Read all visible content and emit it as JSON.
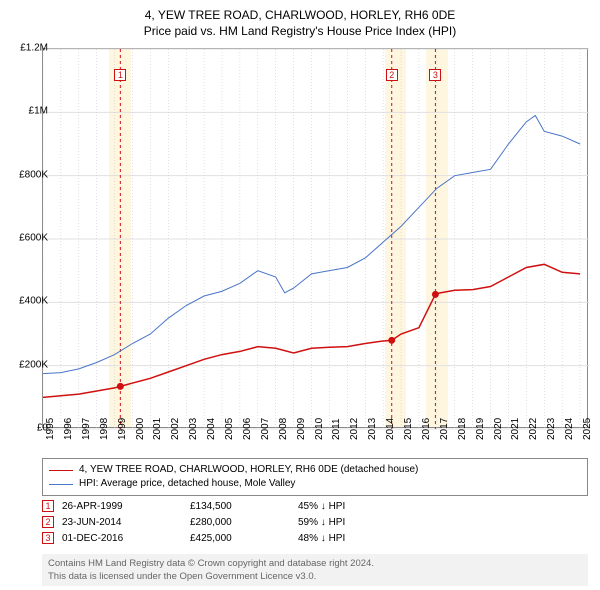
{
  "title": {
    "main": "4, YEW TREE ROAD, CHARLWOOD, HORLEY, RH6 0DE",
    "sub": "Price paid vs. HM Land Registry's House Price Index (HPI)"
  },
  "chart": {
    "type": "line",
    "background_color": "#ffffff",
    "grid_color": "#e0e0e0",
    "border_color": "#888888",
    "xlim": [
      1995,
      2025.5
    ],
    "ylim": [
      0,
      1200000
    ],
    "yticks": [
      {
        "v": 0,
        "label": "£0"
      },
      {
        "v": 200000,
        "label": "£200K"
      },
      {
        "v": 400000,
        "label": "£400K"
      },
      {
        "v": 600000,
        "label": "£600K"
      },
      {
        "v": 800000,
        "label": "£800K"
      },
      {
        "v": 1000000,
        "label": "£1M"
      },
      {
        "v": 1200000,
        "label": "£1.2M"
      }
    ],
    "xticks": [
      1995,
      1996,
      1997,
      1998,
      1999,
      2000,
      2001,
      2002,
      2003,
      2004,
      2005,
      2006,
      2007,
      2008,
      2009,
      2010,
      2011,
      2012,
      2013,
      2014,
      2015,
      2016,
      2017,
      2018,
      2019,
      2020,
      2021,
      2022,
      2023,
      2024,
      2025
    ],
    "shade_bands": [
      {
        "start": 1998.7,
        "end": 1999.9,
        "color": "#fff6e0"
      },
      {
        "start": 2014.1,
        "end": 2015.3,
        "color": "#fff6e0"
      },
      {
        "start": 2016.4,
        "end": 2017.6,
        "color": "#fff6e0"
      }
    ],
    "vlines": [
      {
        "x": 1999.32,
        "color": "#d01010"
      },
      {
        "x": 2014.48,
        "color": "#d01010"
      },
      {
        "x": 2016.92,
        "color": "#d01010"
      }
    ],
    "markers": [
      {
        "x": 1999.32,
        "label": "1"
      },
      {
        "x": 2014.48,
        "label": "2"
      },
      {
        "x": 2016.92,
        "label": "3"
      }
    ],
    "series": [
      {
        "name": "property",
        "label": "4, YEW TREE ROAD, CHARLWOOD, HORLEY, RH6 0DE (detached house)",
        "color": "#d01010",
        "line_width": 1.5,
        "data": [
          [
            1995,
            100000
          ],
          [
            1996,
            105000
          ],
          [
            1997,
            110000
          ],
          [
            1998,
            120000
          ],
          [
            1999,
            130000
          ],
          [
            1999.32,
            134500
          ],
          [
            2000,
            145000
          ],
          [
            2001,
            160000
          ],
          [
            2002,
            180000
          ],
          [
            2003,
            200000
          ],
          [
            2004,
            220000
          ],
          [
            2005,
            235000
          ],
          [
            2006,
            245000
          ],
          [
            2007,
            260000
          ],
          [
            2008,
            255000
          ],
          [
            2009,
            240000
          ],
          [
            2010,
            255000
          ],
          [
            2011,
            258000
          ],
          [
            2012,
            260000
          ],
          [
            2013,
            270000
          ],
          [
            2014,
            278000
          ],
          [
            2014.48,
            280000
          ],
          [
            2015,
            300000
          ],
          [
            2016,
            320000
          ],
          [
            2016.92,
            425000
          ],
          [
            2017,
            428000
          ],
          [
            2018,
            438000
          ],
          [
            2019,
            440000
          ],
          [
            2020,
            450000
          ],
          [
            2021,
            480000
          ],
          [
            2022,
            510000
          ],
          [
            2023,
            520000
          ],
          [
            2024,
            495000
          ],
          [
            2025,
            490000
          ]
        ],
        "sale_points": [
          {
            "x": 1999.32,
            "y": 134500
          },
          {
            "x": 2014.48,
            "y": 280000
          },
          {
            "x": 2016.92,
            "y": 425000
          }
        ]
      },
      {
        "name": "hpi",
        "label": "HPI: Average price, detached house, Mole Valley",
        "color": "#4a74c8",
        "line_width": 1,
        "data": [
          [
            1995,
            175000
          ],
          [
            1996,
            178000
          ],
          [
            1997,
            190000
          ],
          [
            1998,
            210000
          ],
          [
            1999,
            235000
          ],
          [
            2000,
            270000
          ],
          [
            2001,
            300000
          ],
          [
            2002,
            350000
          ],
          [
            2003,
            390000
          ],
          [
            2004,
            420000
          ],
          [
            2005,
            435000
          ],
          [
            2006,
            460000
          ],
          [
            2007,
            500000
          ],
          [
            2008,
            480000
          ],
          [
            2008.5,
            430000
          ],
          [
            2009,
            445000
          ],
          [
            2010,
            490000
          ],
          [
            2011,
            500000
          ],
          [
            2012,
            510000
          ],
          [
            2013,
            540000
          ],
          [
            2014,
            590000
          ],
          [
            2015,
            640000
          ],
          [
            2016,
            700000
          ],
          [
            2017,
            760000
          ],
          [
            2018,
            800000
          ],
          [
            2019,
            810000
          ],
          [
            2020,
            820000
          ],
          [
            2021,
            900000
          ],
          [
            2022,
            970000
          ],
          [
            2022.5,
            990000
          ],
          [
            2023,
            940000
          ],
          [
            2024,
            925000
          ],
          [
            2025,
            900000
          ]
        ]
      }
    ],
    "axis_label_fontsize": 10,
    "title_fontsize": 12
  },
  "annotations": [
    {
      "marker": "1",
      "date": "26-APR-1999",
      "price": "£134,500",
      "pct": "45% ↓ HPI"
    },
    {
      "marker": "2",
      "date": "23-JUN-2014",
      "price": "£280,000",
      "pct": "59% ↓ HPI"
    },
    {
      "marker": "3",
      "date": "01-DEC-2016",
      "price": "£425,000",
      "pct": "48% ↓ HPI"
    }
  ],
  "legend": {
    "s0_color": "#d01010",
    "s1_color": "#4a74c8"
  },
  "attribution": {
    "line1": "Contains HM Land Registry data © Crown copyright and database right 2024.",
    "line2": "This data is licensed under the Open Government Licence v3.0."
  }
}
